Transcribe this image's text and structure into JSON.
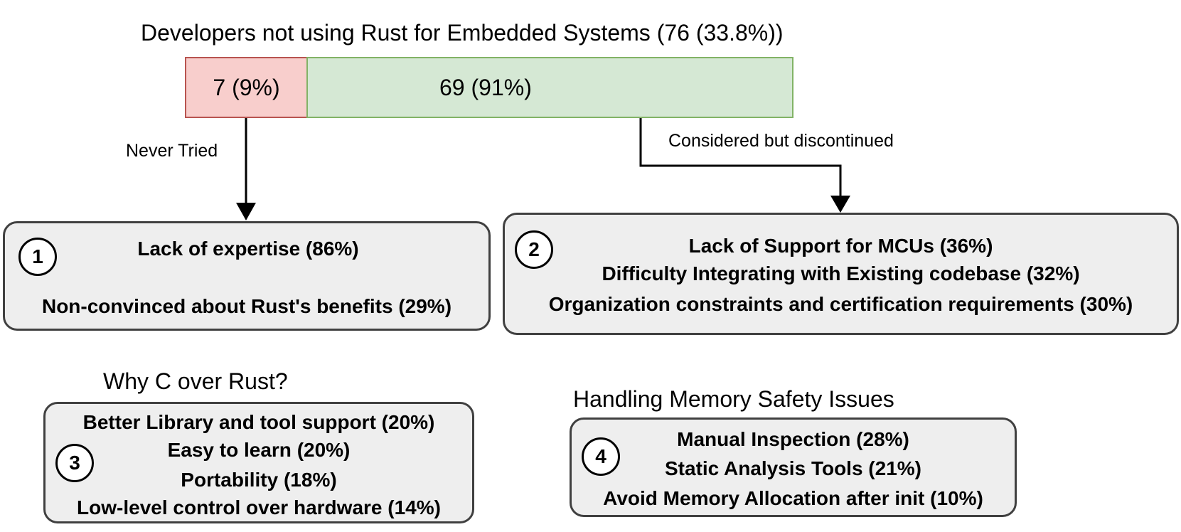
{
  "title": "Developers not using Rust for Embedded Systems (76 (33.8%))",
  "bar": {
    "never_tried": {
      "label": "7 (9%)",
      "count": 7,
      "percent": 9,
      "color": "#f8cecc"
    },
    "discontinued": {
      "label": "69 (91%)",
      "count": 69,
      "percent": 91,
      "color": "#d5e8d4"
    }
  },
  "edges": {
    "never_tried": "Never Tried",
    "considered": "Considered but discontinued"
  },
  "box1": {
    "number": "1",
    "items": [
      "Lack of expertise (86%)",
      "Non-convinced about Rust's benefits (29%)"
    ]
  },
  "box2": {
    "number": "2",
    "items": [
      "Lack of Support for MCUs (36%)",
      "Difficulty Integrating with Existing codebase (32%)",
      "Organization constraints and certification requirements (30%)"
    ]
  },
  "box3": {
    "heading": "Why C over Rust?",
    "number": "3",
    "items": [
      "Better Library and tool support (20%)",
      "Easy to learn (20%)",
      "Portability (18%)",
      "Low-level control over hardware (14%)"
    ]
  },
  "box4": {
    "heading": "Handling Memory Safety Issues",
    "number": "4",
    "items": [
      "Manual Inspection (28%)",
      "Static Analysis Tools (21%)",
      "Avoid Memory Allocation after init (10%)"
    ]
  },
  "colors": {
    "box_fill": "#eeeeee",
    "box_border": "#404040",
    "red_border": "#b85450",
    "green_border": "#82b366"
  }
}
